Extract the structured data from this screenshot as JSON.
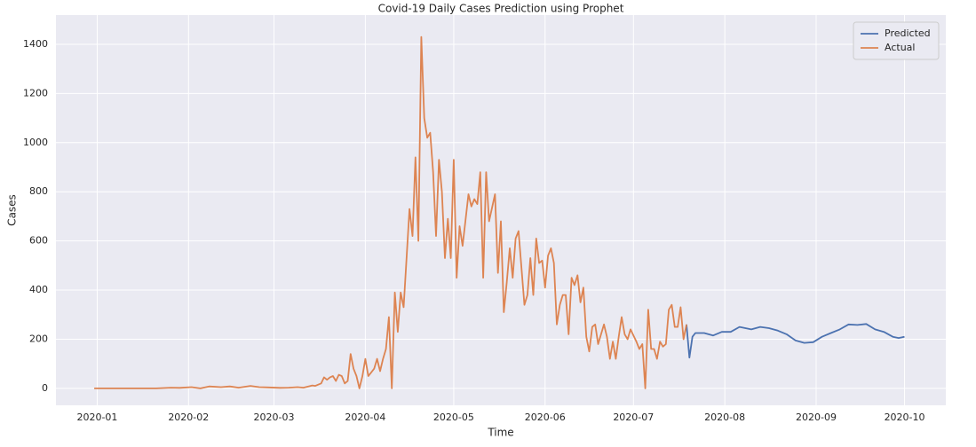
{
  "chart_data": {
    "type": "line",
    "title": "Covid-19 Daily Cases Prediction using Prophet",
    "x_label": "Time",
    "y_label": "Cases",
    "xlim": [
      -14,
      288
    ],
    "ylim": [
      -69,
      1519
    ],
    "xticks": [
      {
        "value": 0,
        "label": "2020-01"
      },
      {
        "value": 31,
        "label": "2020-02"
      },
      {
        "value": 60,
        "label": "2020-03"
      },
      {
        "value": 91,
        "label": "2020-04"
      },
      {
        "value": 121,
        "label": "2020-05"
      },
      {
        "value": 152,
        "label": "2020-06"
      },
      {
        "value": 182,
        "label": "2020-07"
      },
      {
        "value": 213,
        "label": "2020-08"
      },
      {
        "value": 244,
        "label": "2020-09"
      },
      {
        "value": 274,
        "label": "2020-10"
      }
    ],
    "yticks": [
      0,
      200,
      400,
      600,
      800,
      1000,
      1200,
      1400
    ],
    "grid": true,
    "legend": "upper right",
    "series": [
      {
        "name": "Predicted",
        "color": "#4c72b0",
        "x": [
          200,
          201,
          202,
          203,
          206,
          209,
          212,
          215,
          218,
          222,
          225,
          228,
          231,
          234,
          237,
          240,
          243,
          246,
          249,
          252,
          255,
          258,
          261,
          264,
          267,
          270,
          272,
          274
        ],
        "values": [
          260,
          125,
          210,
          225,
          225,
          215,
          230,
          230,
          250,
          240,
          250,
          245,
          235,
          220,
          195,
          185,
          188,
          210,
          225,
          240,
          260,
          258,
          262,
          240,
          230,
          210,
          205,
          210
        ]
      },
      {
        "name": "Actual",
        "color": "#dd8452",
        "x": [
          -1,
          10,
          20,
          25,
          28,
          32,
          35,
          38,
          42,
          45,
          48,
          52,
          55,
          58,
          62,
          65,
          68,
          70,
          73,
          74,
          75,
          76,
          77,
          78,
          79,
          80,
          81,
          82,
          83,
          84,
          85,
          86,
          87,
          88,
          89,
          90,
          91,
          92,
          93,
          94,
          95,
          96,
          97,
          98,
          99,
          100,
          101,
          102,
          103,
          104,
          106,
          107,
          108,
          109,
          110,
          111,
          112,
          113,
          114,
          115,
          116,
          117,
          118,
          119,
          120,
          121,
          122,
          123,
          124,
          126,
          127,
          128,
          129,
          130,
          131,
          132,
          133,
          135,
          136,
          137,
          138,
          139,
          140,
          141,
          142,
          143,
          145,
          146,
          147,
          148,
          149,
          150,
          151,
          152,
          153,
          154,
          155,
          156,
          157,
          158,
          159,
          160,
          161,
          162,
          163,
          164,
          165,
          166,
          167,
          168,
          169,
          170,
          172,
          173,
          174,
          175,
          176,
          177,
          178,
          179,
          180,
          181,
          183,
          184,
          185,
          186,
          187,
          188,
          189,
          190,
          191,
          192,
          193,
          194,
          195,
          196,
          197,
          198,
          199,
          200
        ],
        "values": [
          0,
          0,
          0,
          3,
          2,
          5,
          0,
          8,
          5,
          8,
          3,
          10,
          5,
          4,
          2,
          3,
          5,
          3,
          12,
          10,
          15,
          20,
          45,
          35,
          45,
          50,
          30,
          55,
          50,
          20,
          30,
          140,
          80,
          50,
          0,
          50,
          120,
          50,
          65,
          80,
          120,
          70,
          120,
          160,
          290,
          0,
          390,
          230,
          390,
          330,
          730,
          620,
          940,
          600,
          1430,
          1100,
          1020,
          1040,
          880,
          620,
          930,
          800,
          530,
          690,
          530,
          930,
          450,
          660,
          580,
          790,
          740,
          770,
          750,
          880,
          450,
          880,
          680,
          790,
          470,
          680,
          310,
          430,
          570,
          450,
          610,
          640,
          340,
          380,
          530,
          380,
          610,
          510,
          520,
          410,
          540,
          570,
          510,
          260,
          340,
          380,
          380,
          220,
          450,
          420,
          460,
          350,
          410,
          210,
          150,
          250,
          260,
          180,
          260,
          210,
          120,
          190,
          120,
          210,
          290,
          220,
          200,
          240,
          190,
          160,
          180,
          0,
          320,
          160,
          160,
          120,
          190,
          170,
          180,
          320,
          340,
          250,
          250,
          330,
          200,
          260
        ]
      }
    ]
  }
}
